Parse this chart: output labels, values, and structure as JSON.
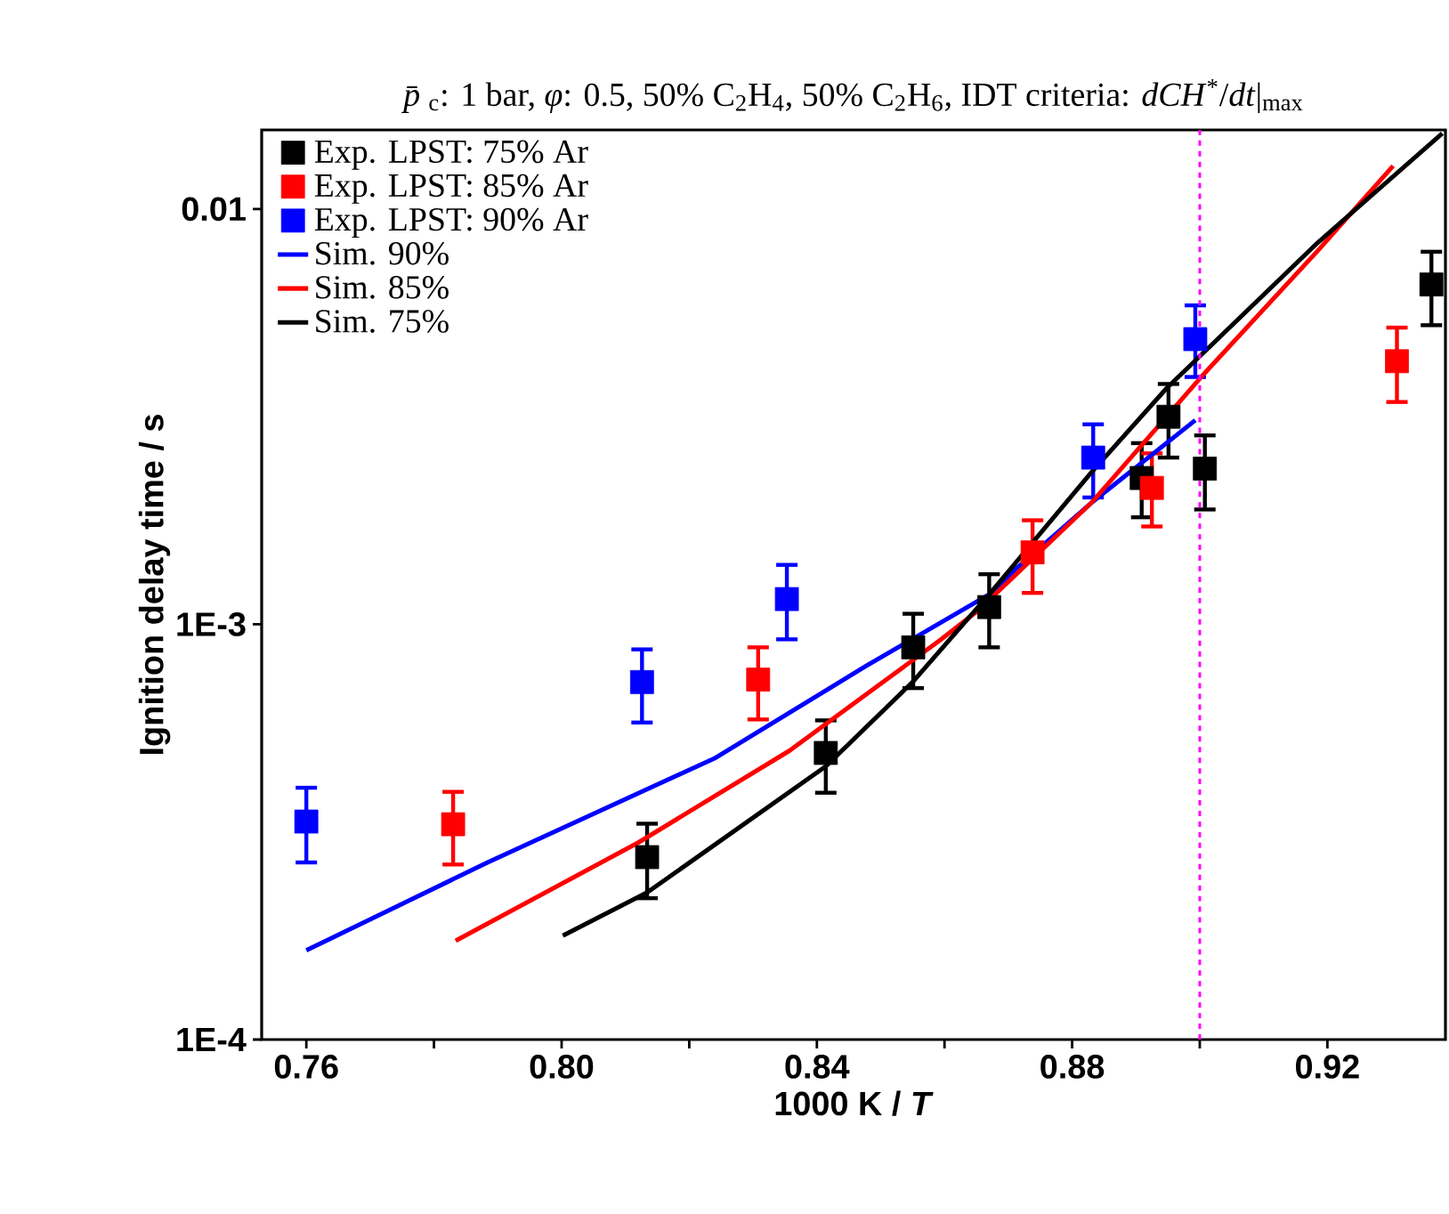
{
  "chart_data": {
    "type": "scatter",
    "title": "*p̄*$_{c}$: 1 bar, *φ*: 0.5, 50% C$_{2}$H$_{4}$, 50% C$_{2}$H$_{6}$, IDT criteria: *dCH*$^{*}$/*dt*|$_{max}$",
    "xlabel": "1000 K / *T*",
    "ylabel": "Ignition delay time / s",
    "xlim": [
      0.753,
      0.9385
    ],
    "ylim": [
      0.0001,
      0.0155
    ],
    "log": "y",
    "xticks": [
      0.76,
      {
        "value": 0.78,
        "label": null
      },
      {
        "value": 0.8,
        "label": "0.80"
      },
      {
        "value": 0.82,
        "label": null
      },
      0.84,
      {
        "value": 0.86,
        "label": null
      },
      0.88,
      {
        "value": 0.9,
        "label": null
      },
      0.92
    ],
    "yticks": [
      {
        "value": 0.0001,
        "label": "1E-4"
      },
      {
        "value": 0.001,
        "label": "1E-3"
      },
      0.01
    ],
    "legend": "top left",
    "ref_lines": [
      {
        "axis": "x",
        "value": 0.9,
        "color": "#ff00ff",
        "line_style": "dashed"
      }
    ],
    "series": [
      {
        "name": "Exp. LPST: 75% Ar",
        "marker": "square",
        "color": "#000000",
        "x": [
          0.8134,
          0.8414,
          0.8551,
          0.867,
          0.8909,
          0.8951,
          0.9008,
          0.9363
        ],
        "values": [
          0.000275,
          0.00049,
          0.00088,
          0.0011,
          0.00225,
          0.00316,
          0.00237,
          0.00658
        ],
        "errors": [
          [
            0.000219,
            0.000331
          ],
          [
            0.000393,
            0.000587
          ],
          [
            0.000702,
            0.00106
          ],
          [
            0.00088,
            0.00132
          ],
          [
            0.00181,
            0.00273
          ],
          [
            0.00252,
            0.00379
          ],
          [
            0.00189,
            0.00285
          ],
          [
            0.00525,
            0.00789
          ]
        ]
      },
      {
        "name": "Exp. LPST: 85% Ar",
        "marker": "square",
        "color": "#ff0000",
        "x": [
          0.783,
          0.8308,
          0.8738,
          0.8925,
          0.9309
        ],
        "values": [
          0.00033,
          0.000736,
          0.00149,
          0.00213,
          0.0043
        ],
        "errors": [
          [
            0.000264,
            0.000395
          ],
          [
            0.00059,
            0.00088
          ],
          [
            0.00119,
            0.00178
          ],
          [
            0.00172,
            0.00258
          ],
          [
            0.00343,
            0.00518
          ]
        ]
      },
      {
        "name": "Exp. LPST: 90% Ar",
        "marker": "square",
        "color": "#0000ff",
        "x": [
          0.76,
          0.8126,
          0.8353,
          0.8833,
          0.8993
        ],
        "values": [
          0.000335,
          0.000726,
          0.00115,
          0.00252,
          0.00486
        ],
        "errors": [
          [
            0.000267,
            0.000404
          ],
          [
            0.00058,
            0.00087
          ],
          [
            0.00092,
            0.00139
          ],
          [
            0.00202,
            0.00303
          ],
          [
            0.00394,
            0.00586
          ]
        ]
      },
      {
        "name": "Sim. 90%",
        "type": "line",
        "marker": "none",
        "color": "#0000ff",
        "x": [
          0.76,
          0.7884,
          0.8239,
          0.8475,
          0.867,
          0.8712,
          0.883,
          0.8993
        ],
        "values": [
          0.000164,
          0.000267,
          0.000475,
          0.00079,
          0.00118,
          0.00136,
          0.00196,
          0.0031
        ]
      },
      {
        "name": "Sim. 85%",
        "type": "line",
        "marker": "none",
        "color": "#ff0000",
        "x": [
          0.7834,
          0.812,
          0.8357,
          0.8594,
          0.8653,
          0.883,
          0.9008,
          0.9185,
          0.9303
        ],
        "values": [
          0.000173,
          0.000298,
          0.000496,
          0.000918,
          0.00108,
          0.00196,
          0.00403,
          0.00794,
          0.0127
        ]
      },
      {
        "name": "Sim. 75%",
        "type": "line",
        "marker": "none",
        "color": "#000000",
        "x": [
          0.8002,
          0.8134,
          0.8414,
          0.855,
          0.867,
          0.883,
          0.8948,
          0.9185,
          0.938
        ],
        "values": [
          0.000178,
          0.000226,
          0.000455,
          0.000726,
          0.00118,
          0.00232,
          0.0037,
          0.0083,
          0.0152
        ]
      }
    ]
  }
}
